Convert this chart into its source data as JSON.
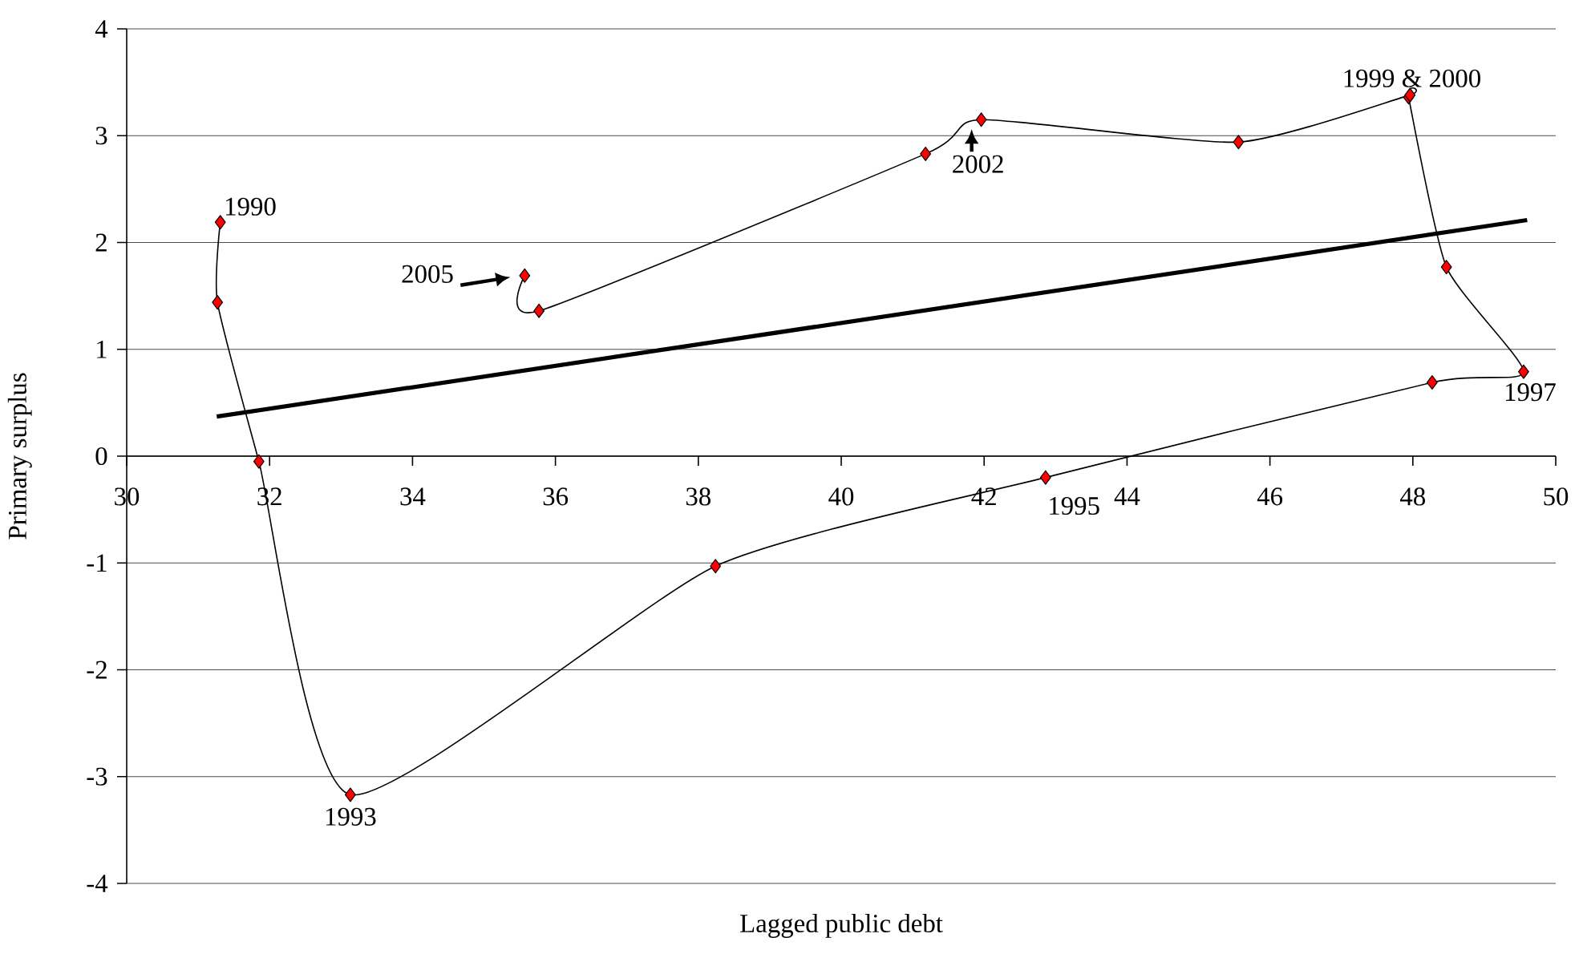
{
  "chart_data": {
    "type": "line",
    "xlabel": "Lagged public debt",
    "ylabel": "Primary surplus",
    "xlim": [
      30,
      50
    ],
    "xticks": [
      30,
      32,
      34,
      36,
      38,
      40,
      42,
      44,
      46,
      48,
      50
    ],
    "ylim": [
      -4,
      4
    ],
    "yticks": [
      -4,
      -3,
      -2,
      -1,
      0,
      1,
      2,
      3,
      4
    ],
    "grid": "y",
    "series": [
      {
        "color": "#ff0000",
        "marker": "diamond",
        "x": [
          31.31,
          31.27,
          31.85,
          33.13,
          38.24,
          42.86,
          48.27,
          49.55,
          48.47,
          47.94,
          47.96,
          45.56,
          41.96,
          41.18,
          35.77,
          35.57
        ],
        "values": [
          2.19,
          1.44,
          -0.05,
          -3.17,
          -1.03,
          -0.2,
          0.69,
          0.79,
          1.77,
          3.36,
          3.38,
          2.94,
          3.15,
          2.83,
          1.36,
          1.69
        ]
      },
      {
        "color": "#000000",
        "marker": "none",
        "x": [
          31.26,
          49.6
        ],
        "values": [
          0.37,
          2.21
        ]
      }
    ],
    "annotations": [
      {
        "text": "1990",
        "x": 31.31,
        "y": 2.19
      },
      {
        "text": "1993",
        "x": 33.13,
        "y": -3.17
      },
      {
        "text": "1995",
        "x": 42.86,
        "y": -0.2
      },
      {
        "text": "1997",
        "x": 49.55,
        "y": 0.79
      },
      {
        "text": "1999 & 2000",
        "x": 47.94,
        "y": 3.36
      },
      {
        "text": "2002",
        "x": 41.96,
        "y": 3.15
      },
      {
        "text": "2005",
        "x": 35.57,
        "y": 1.69
      }
    ]
  }
}
